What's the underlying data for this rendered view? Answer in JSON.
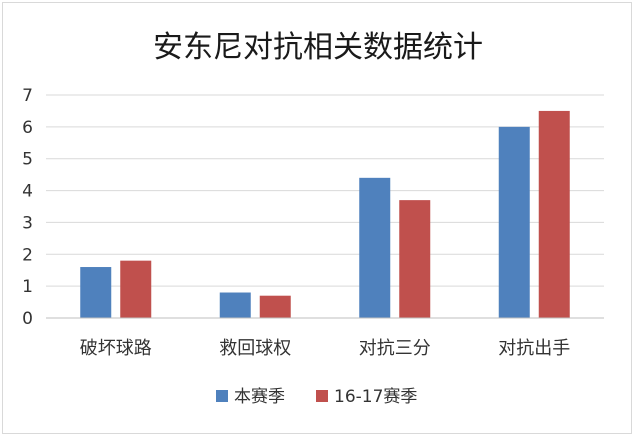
{
  "chart_data": {
    "type": "bar",
    "title": "安东尼对抗相关数据统计",
    "categories": [
      "破坏球路",
      "救回球权",
      "对抗三分",
      "对抗出手"
    ],
    "series": [
      {
        "name": "本赛季",
        "values": [
          1.6,
          0.8,
          4.4,
          6.0
        ],
        "color": "#4f81bd"
      },
      {
        "name": "16-17赛季",
        "values": [
          1.8,
          0.7,
          3.7,
          6.5
        ],
        "color": "#c0504d"
      }
    ],
    "ylim": [
      0,
      7
    ],
    "yticks": [
      "0",
      "1",
      "2",
      "3",
      "4",
      "5",
      "6",
      "7"
    ],
    "grid": true,
    "legend_position": "bottom"
  }
}
